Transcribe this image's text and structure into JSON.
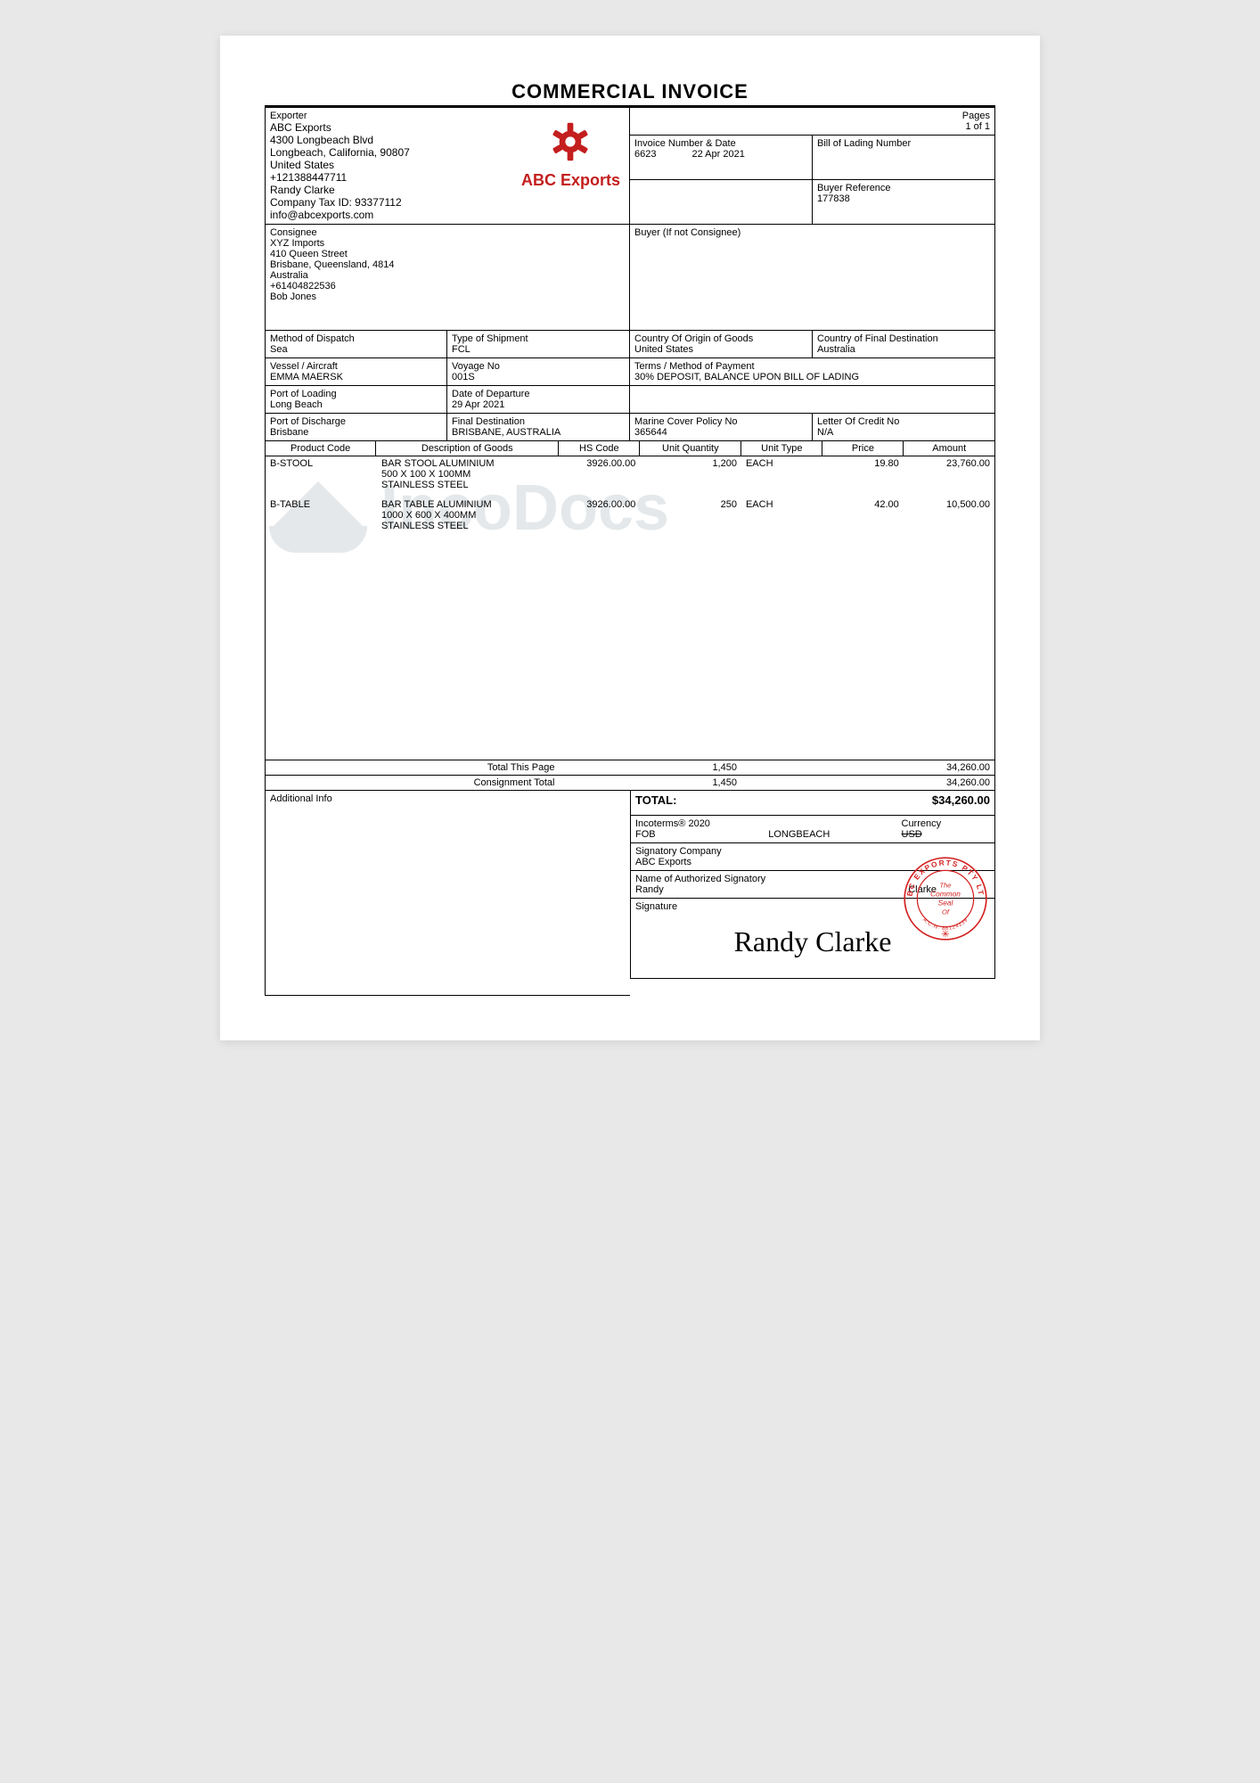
{
  "title": "COMMERCIAL INVOICE",
  "pages": {
    "label": "Pages",
    "value": "1 of 1"
  },
  "exporter": {
    "label": "Exporter",
    "name": "ABC Exports",
    "addr1": "4300 Longbeach Blvd",
    "addr2": "Longbeach, California, 90807",
    "country": "United States",
    "phone": "+121388447711",
    "contact": "Randy Clarke",
    "taxid": "Company Tax ID: 93377112",
    "email": "info@abcexports.com",
    "logo_text": "ABC Exports"
  },
  "invoice": {
    "label": "Invoice Number & Date",
    "number": "6623",
    "date": "22 Apr 2021"
  },
  "bill_of_lading": {
    "label": "Bill of Lading Number",
    "value": ""
  },
  "buyer_ref": {
    "label": "Buyer Reference",
    "value": "177838"
  },
  "consignee": {
    "label": "Consignee",
    "name": "XYZ Imports",
    "addr1": "410 Queen Street",
    "addr2": "Brisbane, Queensland, 4814",
    "country": "Australia",
    "phone": "+61404822536",
    "contact": "Bob Jones"
  },
  "buyer": {
    "label": "Buyer (If not Consignee)",
    "value": ""
  },
  "shipping": {
    "method_dispatch": {
      "label": "Method of Dispatch",
      "value": "Sea"
    },
    "type_shipment": {
      "label": "Type of Shipment",
      "value": "FCL"
    },
    "origin": {
      "label": "Country Of Origin of Goods",
      "value": "United States"
    },
    "destination": {
      "label": "Country of Final Destination",
      "value": "Australia"
    },
    "vessel": {
      "label": "Vessel / Aircraft",
      "value": "EMMA MAERSK"
    },
    "voyage": {
      "label": "Voyage No",
      "value": "001S"
    },
    "terms": {
      "label": "Terms / Method of Payment",
      "value": "30% DEPOSIT, BALANCE UPON BILL OF LADING"
    },
    "port_loading": {
      "label": "Port of Loading",
      "value": "Long Beach"
    },
    "date_departure": {
      "label": "Date of Departure",
      "value": "29 Apr 2021"
    },
    "port_discharge": {
      "label": "Port of Discharge",
      "value": "Brisbane"
    },
    "final_dest": {
      "label": "Final Destination",
      "value": "BRISBANE, AUSTRALIA"
    },
    "marine_policy": {
      "label": "Marine Cover Policy No",
      "value": "365644"
    },
    "letter_credit": {
      "label": "Letter Of Credit No",
      "value": "N/A"
    }
  },
  "headers": {
    "code": "Product Code",
    "desc": "Description of Goods",
    "hs": "HS Code",
    "qty": "Unit Quantity",
    "type": "Unit Type",
    "price": "Price",
    "amount": "Amount"
  },
  "items": [
    {
      "code": "B-STOOL",
      "desc": "BAR STOOL ALUMINIUM\n500 X 100 X 100MM\nSTAINLESS STEEL",
      "hs": "3926.00.00",
      "qty": "1,200",
      "type": "EACH",
      "price": "19.80",
      "amount": "23,760.00"
    },
    {
      "code": "B-TABLE",
      "desc": "BAR TABLE ALUMINIUM\n1000 X 600 X 400MM\nSTAINLESS STEEL",
      "hs": "3926.00.00",
      "qty": "250",
      "type": "EACH",
      "price": "42.00",
      "amount": "10,500.00"
    }
  ],
  "totals": {
    "page_label": "Total This Page",
    "page_qty": "1,450",
    "page_amount": "34,260.00",
    "consignment_label": "Consignment Total",
    "consignment_qty": "1,450",
    "consignment_amount": "34,260.00"
  },
  "footer": {
    "additional_label": "Additional Info",
    "additional_value": "",
    "total_label": "TOTAL:",
    "total_value": "$34,260.00",
    "incoterms_label": "Incoterms® 2020",
    "incoterms_code": "FOB",
    "incoterms_place": "LONGBEACH",
    "currency_label": "Currency",
    "currency_value": "USD",
    "sig_company_label": "Signatory Company",
    "sig_company_value": "ABC Exports",
    "auth_sig_label": "Name of Authorized Signatory",
    "auth_sig_first": "Randy",
    "auth_sig_last": "Clarke",
    "signature_label": "Signature",
    "signature_text": "Randy Clarke",
    "seal_outer": "ABC EXPORTS PTY LTD",
    "seal_inner1": "The",
    "seal_inner2": "Common",
    "seal_inner3": "Seal",
    "seal_inner4": "Of",
    "seal_acn": "A.C.N. 86124239"
  },
  "watermark": "IncoDocs",
  "colors": {
    "logo": "#c41e1e",
    "seal": "#d42020",
    "watermark": "#a9b5bb"
  }
}
